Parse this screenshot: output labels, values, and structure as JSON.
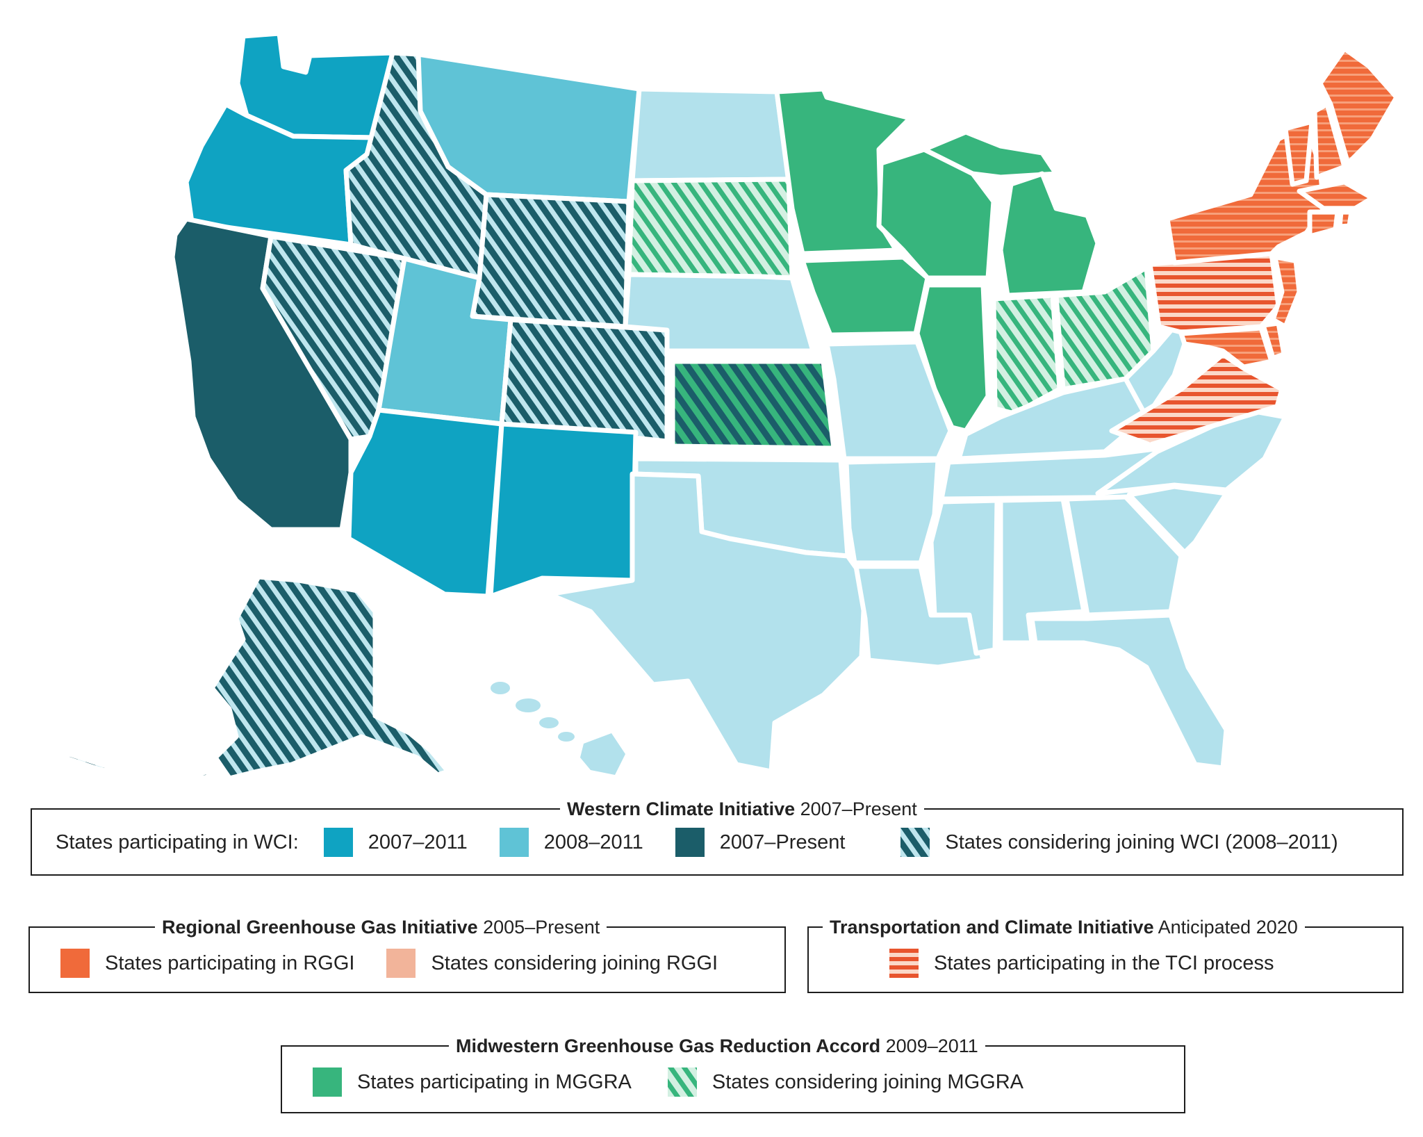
{
  "colors": {
    "wci_2007_2011": "#0fa3c2",
    "wci_2008_2011": "#5fc3d6",
    "wci_2007_present": "#1b5d69",
    "wci_considering_stripe": "#1b5d69",
    "wci_considering_bg": "#bfe6ee",
    "rggi_participating": "#f06a3a",
    "rggi_considering": "#f2b49a",
    "tci_stripe": "#e8552e",
    "mggra_participating": "#37b57d",
    "mggra_considering_stripe": "#37b57d",
    "mggra_considering_bg": "#d3f0e2",
    "non_participant": "#b2e1ec"
  },
  "map": {
    "states": [
      {
        "id": "WA",
        "category": "wci_2007_2011"
      },
      {
        "id": "OR",
        "category": "wci_2007_2011"
      },
      {
        "id": "CA",
        "category": "wci_2007_present"
      },
      {
        "id": "AZ",
        "category": "wci_2007_2011"
      },
      {
        "id": "NM",
        "category": "wci_2007_2011"
      },
      {
        "id": "MT",
        "category": "wci_2008_2011"
      },
      {
        "id": "UT",
        "category": "wci_2008_2011"
      },
      {
        "id": "ID",
        "category": "wci_considering"
      },
      {
        "id": "NV",
        "category": "wci_considering"
      },
      {
        "id": "WY",
        "category": "wci_considering"
      },
      {
        "id": "CO",
        "category": "wci_considering"
      },
      {
        "id": "AK",
        "category": "wci_considering"
      },
      {
        "id": "KS",
        "category": "wci_and_mggra_considering"
      },
      {
        "id": "MN",
        "category": "mggra_participating"
      },
      {
        "id": "WI",
        "category": "mggra_participating"
      },
      {
        "id": "MI",
        "category": "mggra_participating"
      },
      {
        "id": "IA",
        "category": "mggra_participating"
      },
      {
        "id": "IL",
        "category": "mggra_participating"
      },
      {
        "id": "SD",
        "category": "mggra_considering"
      },
      {
        "id": "IN",
        "category": "mggra_considering"
      },
      {
        "id": "OH",
        "category": "mggra_considering"
      },
      {
        "id": "ME",
        "category": "rggi_and_tci"
      },
      {
        "id": "NH",
        "category": "rggi_and_tci"
      },
      {
        "id": "VT",
        "category": "rggi_and_tci"
      },
      {
        "id": "NY",
        "category": "rggi_and_tci"
      },
      {
        "id": "MA",
        "category": "rggi_and_tci"
      },
      {
        "id": "CT",
        "category": "rggi_and_tci"
      },
      {
        "id": "RI",
        "category": "rggi_and_tci"
      },
      {
        "id": "NJ",
        "category": "rggi_and_tci"
      },
      {
        "id": "DE",
        "category": "rggi_and_tci"
      },
      {
        "id": "MD",
        "category": "rggi_and_tci"
      },
      {
        "id": "PA",
        "category": "rggi_considering_and_tci"
      },
      {
        "id": "VA",
        "category": "rggi_considering_and_tci"
      },
      {
        "id": "ND",
        "category": "non_participant"
      },
      {
        "id": "NE",
        "category": "non_participant"
      },
      {
        "id": "OK",
        "category": "non_participant"
      },
      {
        "id": "TX",
        "category": "non_participant"
      },
      {
        "id": "MO",
        "category": "non_participant"
      },
      {
        "id": "AR",
        "category": "non_participant"
      },
      {
        "id": "LA",
        "category": "non_participant"
      },
      {
        "id": "MS",
        "category": "non_participant"
      },
      {
        "id": "AL",
        "category": "non_participant"
      },
      {
        "id": "GA",
        "category": "non_participant"
      },
      {
        "id": "FL",
        "category": "non_participant"
      },
      {
        "id": "SC",
        "category": "non_participant"
      },
      {
        "id": "NC",
        "category": "non_participant"
      },
      {
        "id": "TN",
        "category": "non_participant"
      },
      {
        "id": "KY",
        "category": "non_participant"
      },
      {
        "id": "WV",
        "category": "non_participant"
      },
      {
        "id": "HI",
        "category": "non_participant"
      }
    ]
  },
  "legend": {
    "wci": {
      "title_bold": "Western Climate Initiative",
      "title_rest": " 2007–Present",
      "lead": "States participating in WCI:",
      "items": [
        "2007–2011",
        "2008–2011",
        "2007–Present",
        "States considering joining WCI (2008–2011)"
      ]
    },
    "rggi": {
      "title_bold": "Regional Greenhouse Gas Initiative",
      "title_rest": " 2005–Present",
      "items": [
        "States participating in RGGI",
        "States considering joining RGGI"
      ]
    },
    "tci": {
      "title_bold": "Transportation and Climate Initiative",
      "title_rest": " Anticipated 2020",
      "items": [
        "States participating in the TCI process"
      ]
    },
    "mggra": {
      "title_bold": "Midwestern Greenhouse Gas Reduction Accord",
      "title_rest": " 2009–2011",
      "items": [
        "States participating in MGGRA",
        "States considering joining MGGRA"
      ]
    }
  }
}
